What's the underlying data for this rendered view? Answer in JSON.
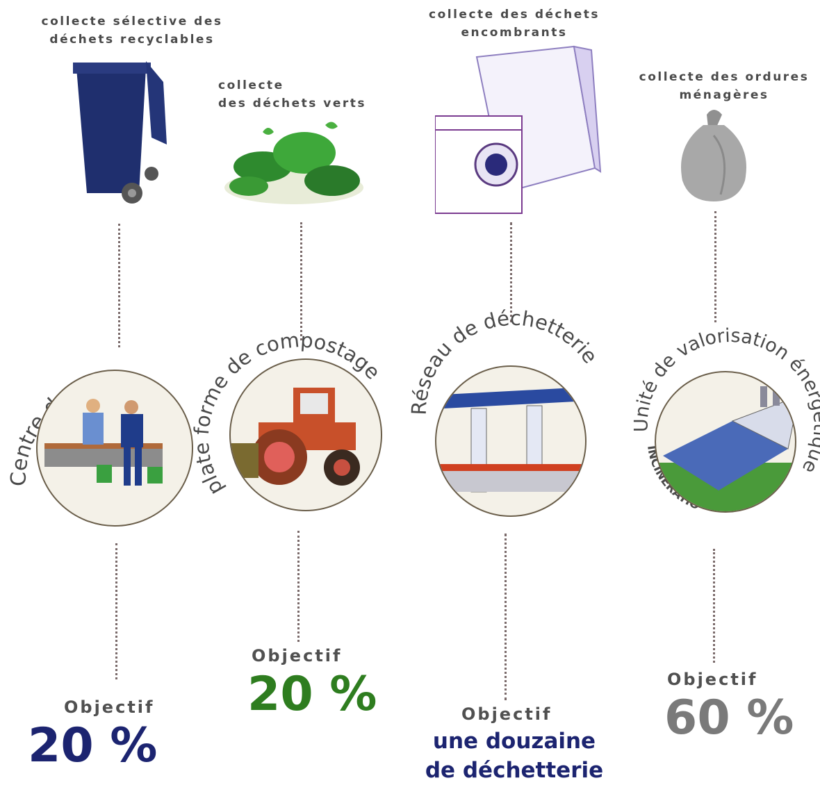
{
  "columns": [
    {
      "caption": "collecte sélective des\ndéchets recyclables",
      "facility": "Centre de tri",
      "objective_label": "Objectif",
      "objective_value": "20 %",
      "color": "#1c2470",
      "icon": "wheelie-bin-icon"
    },
    {
      "caption": "collecte\ndes déchets verts",
      "facility": "plate forme de compostage",
      "objective_label": "Objectif",
      "objective_value": "20 %",
      "color": "#2e7d1f",
      "icon": "green-waste-icon"
    },
    {
      "caption": "collecte des déchets\nencombrants",
      "facility": "Réseau de déchetterie",
      "objective_label": "Objectif",
      "objective_value_line1": "une douzaine",
      "objective_value_line2": "de déchetterie",
      "color": "#1c2470",
      "icon": "bulky-waste-icon"
    },
    {
      "caption": "collecte des ordures\nménagères",
      "facility": "Unité de valorisation énergétique",
      "facility_sub": "INCINÉRATION -",
      "objective_label": "Objectif",
      "objective_value": "60 %",
      "color": "#7a7a7a",
      "icon": "trash-bag-icon"
    }
  ]
}
